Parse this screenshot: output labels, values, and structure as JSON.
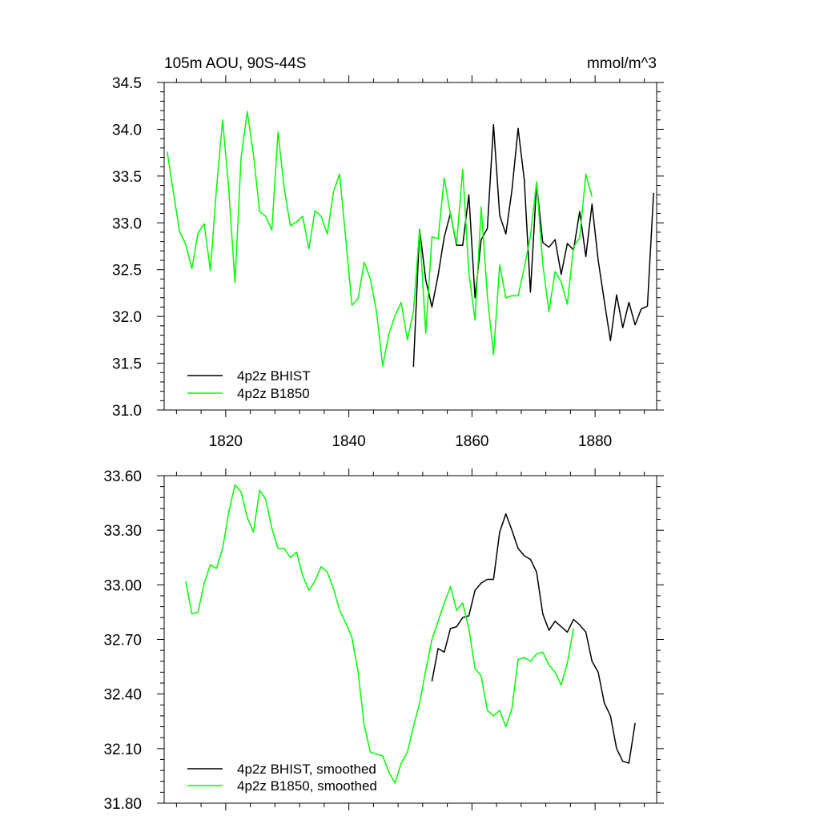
{
  "chart_data": [
    {
      "type": "line",
      "title_left": "105m AOU, 90S-44S",
      "title_right": "mmol/m^3",
      "xlabel": "",
      "ylabel": "",
      "xlim": [
        1810,
        1890
      ],
      "ylim": [
        31.0,
        34.5
      ],
      "xticks": [
        1820,
        1840,
        1860,
        1880
      ],
      "xtick_labels": [
        "1820",
        "1840",
        "1860",
        "1880"
      ],
      "yticks": [
        31.0,
        31.5,
        32.0,
        32.5,
        33.0,
        33.5,
        34.0,
        34.5
      ],
      "ytick_labels": [
        "31.0",
        "31.5",
        "32.0",
        "32.5",
        "33.0",
        "33.5",
        "34.0",
        "34.5"
      ],
      "grid": false,
      "legend_position": "bottom-left",
      "series": [
        {
          "name": "4p2z BHIST",
          "color": "#000000",
          "x": [
            1850.5,
            1851.5,
            1852.5,
            1853.5,
            1854.5,
            1855.5,
            1856.5,
            1857.5,
            1858.5,
            1859.5,
            1860.5,
            1861.5,
            1862.5,
            1863.5,
            1864.5,
            1865.5,
            1866.5,
            1867.5,
            1868.5,
            1869.5,
            1870.5,
            1871.5,
            1872.5,
            1873.5,
            1874.5,
            1875.5,
            1876.5,
            1877.5,
            1878.5,
            1879.5,
            1880.5,
            1881.5,
            1882.5,
            1883.5,
            1884.5,
            1885.5,
            1886.5,
            1887.5,
            1888.5,
            1889.5
          ],
          "y": [
            31.46,
            32.93,
            32.39,
            32.1,
            32.44,
            32.85,
            33.1,
            32.76,
            32.76,
            33.3,
            32.2,
            32.82,
            32.94,
            34.05,
            33.08,
            32.88,
            33.35,
            34.01,
            33.46,
            32.26,
            33.42,
            32.79,
            32.74,
            32.82,
            32.45,
            32.78,
            32.71,
            33.12,
            32.64,
            33.2,
            32.6,
            32.16,
            31.74,
            32.23,
            31.88,
            32.15,
            31.91,
            32.08,
            32.11,
            33.32
          ]
        },
        {
          "name": "4p2z B1850",
          "color": "#00ff00",
          "x": [
            1810.5,
            1811.5,
            1812.5,
            1813.5,
            1814.5,
            1815.5,
            1816.5,
            1817.5,
            1818.5,
            1819.5,
            1820.5,
            1821.5,
            1822.5,
            1823.5,
            1824.5,
            1825.5,
            1826.5,
            1827.5,
            1828.5,
            1829.5,
            1830.5,
            1831.5,
            1832.5,
            1833.5,
            1834.5,
            1835.5,
            1836.5,
            1837.5,
            1838.5,
            1839.5,
            1840.5,
            1841.5,
            1842.5,
            1843.5,
            1844.5,
            1845.5,
            1846.5,
            1847.5,
            1848.5,
            1849.5,
            1850.5,
            1851.5,
            1852.5,
            1853.5,
            1854.5,
            1855.5,
            1856.5,
            1857.5,
            1858.5,
            1859.5,
            1860.5,
            1861.5,
            1862.5,
            1863.5,
            1864.5,
            1865.5,
            1866.5,
            1867.5,
            1868.5,
            1869.5,
            1870.5,
            1871.5,
            1872.5,
            1873.5,
            1874.5,
            1875.5,
            1876.5,
            1877.5,
            1878.5,
            1879.5
          ],
          "y": [
            33.76,
            33.33,
            32.91,
            32.77,
            32.51,
            32.89,
            32.99,
            32.49,
            33.36,
            34.1,
            33.36,
            32.36,
            33.7,
            34.19,
            33.73,
            33.12,
            33.07,
            32.92,
            33.97,
            33.37,
            32.97,
            33.01,
            33.07,
            32.72,
            33.13,
            33.07,
            32.88,
            33.33,
            33.52,
            32.83,
            32.12,
            32.19,
            32.58,
            32.4,
            32.05,
            31.47,
            31.81,
            32.01,
            32.15,
            31.75,
            32.05,
            32.93,
            31.82,
            32.85,
            32.83,
            33.48,
            33.09,
            32.78,
            33.57,
            32.47,
            31.96,
            33.17,
            32.22,
            31.59,
            32.55,
            32.2,
            32.22,
            32.22,
            32.52,
            32.86,
            33.44,
            32.56,
            32.05,
            32.48,
            32.37,
            32.13,
            32.74,
            32.84,
            33.52,
            33.28
          ]
        }
      ]
    },
    {
      "type": "line",
      "xlabel": "",
      "ylabel": "",
      "xlim": [
        1810,
        1890
      ],
      "ylim": [
        31.8,
        33.6
      ],
      "xticks": [
        1820,
        1840,
        1860,
        1880
      ],
      "yticks": [
        31.8,
        32.1,
        32.4,
        32.7,
        33.0,
        33.3,
        33.6
      ],
      "ytick_labels": [
        "31.80",
        "32.10",
        "32.40",
        "32.70",
        "33.00",
        "33.30",
        "33.60"
      ],
      "grid": false,
      "legend_position": "bottom-left",
      "series": [
        {
          "name": "4p2z BHIST, smoothed",
          "color": "#000000",
          "x": [
            1853.5,
            1854.5,
            1855.5,
            1856.5,
            1857.5,
            1858.5,
            1859.5,
            1860.5,
            1861.5,
            1862.5,
            1863.5,
            1864.5,
            1865.5,
            1866.5,
            1867.5,
            1868.5,
            1869.5,
            1870.5,
            1871.5,
            1872.5,
            1873.5,
            1874.5,
            1875.5,
            1876.5,
            1877.5,
            1878.5,
            1879.5,
            1880.5,
            1881.5,
            1882.5,
            1883.5,
            1884.5,
            1885.5,
            1886.5
          ],
          "y": [
            32.47,
            32.65,
            32.63,
            32.76,
            32.77,
            32.82,
            32.83,
            32.97,
            33.01,
            33.03,
            33.03,
            33.29,
            33.39,
            33.3,
            33.2,
            33.16,
            33.14,
            33.07,
            32.84,
            32.75,
            32.8,
            32.77,
            32.74,
            32.81,
            32.78,
            32.74,
            32.58,
            32.52,
            32.35,
            32.28,
            32.1,
            32.03,
            32.02,
            32.24
          ]
        },
        {
          "name": "4p2z B1850, smoothed",
          "color": "#00ff00",
          "x": [
            1813.5,
            1814.5,
            1815.5,
            1816.5,
            1817.5,
            1818.5,
            1819.5,
            1820.5,
            1821.5,
            1822.5,
            1823.5,
            1824.5,
            1825.5,
            1826.5,
            1827.5,
            1828.5,
            1829.5,
            1830.5,
            1831.5,
            1832.5,
            1833.5,
            1834.5,
            1835.5,
            1836.5,
            1837.5,
            1838.5,
            1839.5,
            1840.5,
            1841.5,
            1842.5,
            1843.5,
            1844.5,
            1845.5,
            1846.5,
            1847.5,
            1848.5,
            1849.5,
            1850.5,
            1851.5,
            1852.5,
            1853.5,
            1854.5,
            1855.5,
            1856.5,
            1857.5,
            1858.5,
            1859.5,
            1860.5,
            1861.5,
            1862.5,
            1863.5,
            1864.5,
            1865.5,
            1866.5,
            1867.5,
            1868.5,
            1869.5,
            1870.5,
            1871.5,
            1872.5,
            1873.5,
            1874.5,
            1875.5,
            1876.5
          ],
          "y": [
            33.02,
            32.84,
            32.85,
            33.01,
            33.11,
            33.09,
            33.2,
            33.4,
            33.55,
            33.51,
            33.37,
            33.29,
            33.52,
            33.47,
            33.31,
            33.2,
            33.2,
            33.15,
            33.18,
            33.05,
            32.97,
            33.02,
            33.1,
            33.07,
            32.98,
            32.86,
            32.79,
            32.71,
            32.52,
            32.23,
            32.08,
            32.07,
            32.06,
            31.97,
            31.91,
            32.02,
            32.08,
            32.22,
            32.35,
            32.53,
            32.7,
            32.8,
            32.9,
            32.99,
            32.86,
            32.9,
            32.76,
            32.54,
            32.5,
            32.31,
            32.28,
            32.31,
            32.22,
            32.32,
            32.59,
            32.6,
            32.58,
            32.62,
            32.63,
            32.56,
            32.52,
            32.45,
            32.57,
            32.76
          ]
        }
      ]
    }
  ]
}
